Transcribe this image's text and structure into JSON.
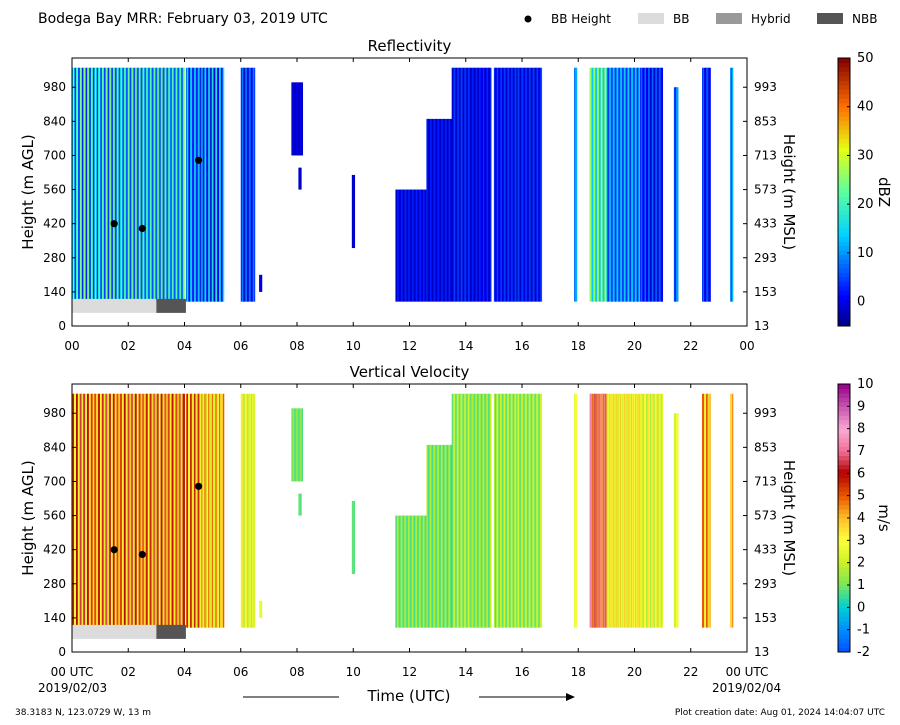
{
  "header": {
    "title": "Bodega Bay MRR:  February 03, 2019 UTC",
    "legend": [
      {
        "label": "BB Height",
        "kind": "dot",
        "color": "#000000"
      },
      {
        "label": "BB",
        "kind": "box",
        "color": "#dcdcdc"
      },
      {
        "label": "Hybrid",
        "kind": "box",
        "color": "#999999"
      },
      {
        "label": "NBB",
        "kind": "box",
        "color": "#555555"
      }
    ]
  },
  "footer": {
    "location": "38.3183 N, 123.0729 W, 13 m",
    "creation": "Plot creation date: Aug 01, 2024 14:04:07 UTC",
    "xlabel": "Time (UTC)",
    "start_date": "2019/02/03",
    "end_date": "2019/02/04"
  },
  "chart_data": [
    {
      "type": "heatmap",
      "title": "Reflectivity",
      "ylabel": "Height (m AGL)",
      "ylabel_right": "Height (m MSL)",
      "xlim": [
        0,
        24
      ],
      "ylim": [
        0,
        1100
      ],
      "x_ticks": [
        "00",
        "02",
        "04",
        "06",
        "08",
        "10",
        "12",
        "14",
        "16",
        "18",
        "20",
        "22",
        "00"
      ],
      "y_ticks": [
        0,
        140,
        280,
        420,
        560,
        700,
        840,
        980
      ],
      "y_ticks_right": [
        13,
        153,
        293,
        433,
        573,
        713,
        853,
        993
      ],
      "colorbar": {
        "label": "dBZ",
        "min": -5,
        "max": 50,
        "ticks": [
          0,
          10,
          20,
          30,
          40,
          50
        ],
        "colormap": "jet"
      },
      "bb_height_points": [
        {
          "x": 1.5,
          "y": 420
        },
        {
          "x": 2.5,
          "y": 400
        },
        {
          "x": 4.5,
          "y": 680
        }
      ],
      "bb_type_bar": [
        {
          "start": 0,
          "end": 3.0,
          "type": "BB"
        },
        {
          "start": 3.0,
          "end": 4.05,
          "type": "NBB"
        }
      ],
      "segments": [
        {
          "start": 0.0,
          "end": 4.0,
          "bottom": 100,
          "top": 1060,
          "min": 2,
          "max": 26
        },
        {
          "start": 4.05,
          "end": 4.6,
          "bottom": 100,
          "top": 1060,
          "min": 0,
          "max": 16
        },
        {
          "start": 4.6,
          "end": 5.4,
          "bottom": 100,
          "top": 1060,
          "min": -2,
          "max": 18
        },
        {
          "start": 6.0,
          "end": 6.5,
          "bottom": 100,
          "top": 1060,
          "min": -2,
          "max": 10
        },
        {
          "start": 6.65,
          "end": 6.75,
          "bottom": 140,
          "top": 210,
          "min": -2,
          "max": 2
        },
        {
          "start": 7.8,
          "end": 8.2,
          "bottom": 700,
          "top": 1000,
          "min": -3,
          "max": 1
        },
        {
          "start": 8.05,
          "end": 8.15,
          "bottom": 560,
          "top": 650,
          "min": -3,
          "max": 0
        },
        {
          "start": 9.95,
          "end": 10.05,
          "bottom": 320,
          "top": 620,
          "min": -3,
          "max": 0
        },
        {
          "start": 11.5,
          "end": 12.6,
          "bottom": 100,
          "top": 560,
          "min": -3,
          "max": 4
        },
        {
          "start": 12.6,
          "end": 13.5,
          "bottom": 100,
          "top": 850,
          "min": -3,
          "max": 4
        },
        {
          "start": 13.5,
          "end": 14.2,
          "bottom": 100,
          "top": 1060,
          "min": -3,
          "max": 6
        },
        {
          "start": 14.2,
          "end": 14.9,
          "bottom": 100,
          "top": 1060,
          "min": -3,
          "max": 4
        },
        {
          "start": 15.0,
          "end": 15.8,
          "bottom": 100,
          "top": 1060,
          "min": -3,
          "max": 6
        },
        {
          "start": 15.8,
          "end": 16.7,
          "bottom": 100,
          "top": 1060,
          "min": -3,
          "max": 6
        },
        {
          "start": 17.85,
          "end": 17.95,
          "bottom": 100,
          "top": 1060,
          "min": 8,
          "max": 12
        },
        {
          "start": 18.4,
          "end": 19.0,
          "bottom": 100,
          "top": 1060,
          "min": 10,
          "max": 30
        },
        {
          "start": 19.0,
          "end": 20.2,
          "bottom": 100,
          "top": 1060,
          "min": 2,
          "max": 16
        },
        {
          "start": 20.2,
          "end": 21.0,
          "bottom": 100,
          "top": 1060,
          "min": -2,
          "max": 8
        },
        {
          "start": 21.4,
          "end": 21.55,
          "bottom": 100,
          "top": 980,
          "min": 2,
          "max": 12
        },
        {
          "start": 22.4,
          "end": 22.7,
          "bottom": 100,
          "top": 1060,
          "min": -2,
          "max": 8
        },
        {
          "start": 23.4,
          "end": 23.5,
          "bottom": 100,
          "top": 1060,
          "min": 6,
          "max": 14
        }
      ]
    },
    {
      "type": "heatmap",
      "title": "Vertical Velocity",
      "ylabel": "Height (m AGL)",
      "ylabel_right": "Height (m MSL)",
      "xlim": [
        0,
        24
      ],
      "ylim": [
        0,
        1100
      ],
      "x_ticks": [
        "00 UTC",
        "02",
        "04",
        "06",
        "08",
        "10",
        "12",
        "14",
        "16",
        "18",
        "20",
        "22",
        "00 UTC"
      ],
      "y_ticks": [
        0,
        140,
        280,
        420,
        560,
        700,
        840,
        980
      ],
      "y_ticks_right": [
        13,
        153,
        293,
        433,
        573,
        713,
        853,
        993
      ],
      "colorbar": {
        "label": "m/s",
        "min": -2,
        "max": 10,
        "ticks": [
          -2,
          -1,
          0,
          1,
          2,
          3,
          4,
          5,
          6,
          7,
          8,
          9,
          10
        ],
        "colormap": "diverging"
      },
      "bb_height_points": [
        {
          "x": 1.5,
          "y": 420
        },
        {
          "x": 2.5,
          "y": 400
        },
        {
          "x": 4.5,
          "y": 680
        }
      ],
      "bb_type_bar": [
        {
          "start": 0,
          "end": 3.0,
          "type": "BB"
        },
        {
          "start": 3.0,
          "end": 4.05,
          "type": "NBB"
        }
      ],
      "segments": [
        {
          "start": 0.0,
          "end": 4.0,
          "bottom": 100,
          "top": 1060,
          "min": 2.5,
          "max": 6.5
        },
        {
          "start": 4.05,
          "end": 4.6,
          "bottom": 100,
          "top": 1060,
          "min": 2.5,
          "max": 6
        },
        {
          "start": 4.6,
          "end": 5.4,
          "bottom": 100,
          "top": 1060,
          "min": 2,
          "max": 5
        },
        {
          "start": 6.0,
          "end": 6.5,
          "bottom": 100,
          "top": 1060,
          "min": 1.5,
          "max": 3.5
        },
        {
          "start": 6.65,
          "end": 6.75,
          "bottom": 140,
          "top": 210,
          "min": 2.5,
          "max": 3
        },
        {
          "start": 7.8,
          "end": 8.2,
          "bottom": 700,
          "top": 1000,
          "min": 0.5,
          "max": 1.5
        },
        {
          "start": 8.05,
          "end": 8.15,
          "bottom": 560,
          "top": 650,
          "min": 0.5,
          "max": 1
        },
        {
          "start": 9.95,
          "end": 10.05,
          "bottom": 320,
          "top": 620,
          "min": 0.5,
          "max": 1
        },
        {
          "start": 11.5,
          "end": 12.6,
          "bottom": 100,
          "top": 560,
          "min": 0.3,
          "max": 2
        },
        {
          "start": 12.6,
          "end": 13.5,
          "bottom": 100,
          "top": 850,
          "min": 0.3,
          "max": 2
        },
        {
          "start": 13.5,
          "end": 14.2,
          "bottom": 100,
          "top": 1060,
          "min": 0.5,
          "max": 2.5
        },
        {
          "start": 14.2,
          "end": 14.9,
          "bottom": 100,
          "top": 1060,
          "min": 0.5,
          "max": 2
        },
        {
          "start": 15.0,
          "end": 15.8,
          "bottom": 100,
          "top": 1060,
          "min": 0.5,
          "max": 2.5
        },
        {
          "start": 15.8,
          "end": 16.7,
          "bottom": 100,
          "top": 1060,
          "min": 0.5,
          "max": 2.5
        },
        {
          "start": 17.85,
          "end": 17.95,
          "bottom": 100,
          "top": 1060,
          "min": 2.5,
          "max": 3
        },
        {
          "start": 18.4,
          "end": 19.0,
          "bottom": 100,
          "top": 1060,
          "min": 4,
          "max": 8
        },
        {
          "start": 19.0,
          "end": 20.2,
          "bottom": 100,
          "top": 1060,
          "min": 2,
          "max": 4
        },
        {
          "start": 20.2,
          "end": 21.0,
          "bottom": 100,
          "top": 1060,
          "min": 1.5,
          "max": 3.5
        },
        {
          "start": 21.4,
          "end": 21.55,
          "bottom": 100,
          "top": 980,
          "min": 2,
          "max": 3
        },
        {
          "start": 22.4,
          "end": 22.7,
          "bottom": 100,
          "top": 1060,
          "min": 2.5,
          "max": 5.5
        },
        {
          "start": 23.4,
          "end": 23.5,
          "bottom": 100,
          "top": 1060,
          "min": 3.5,
          "max": 4.5
        }
      ]
    }
  ]
}
